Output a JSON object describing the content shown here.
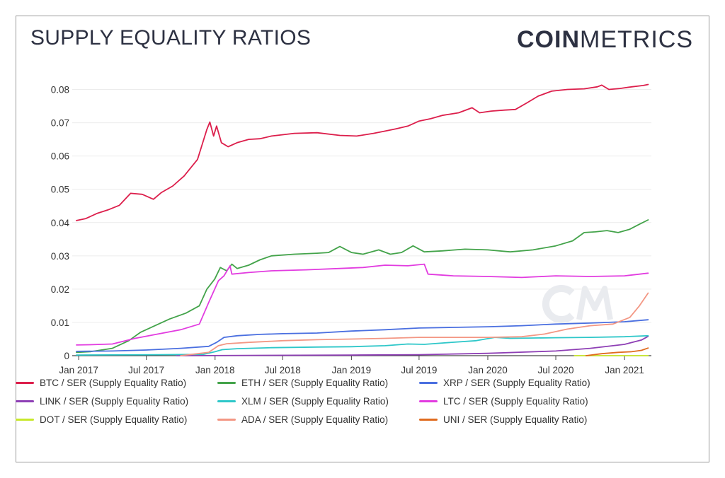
{
  "header": {
    "title": "SUPPLY EQUALITY RATIOS",
    "brand_bold": "COIN",
    "brand_light": "METRICS"
  },
  "chart_data": {
    "type": "line",
    "title": "SUPPLY EQUALITY RATIOS",
    "xlabel": "",
    "ylabel": "",
    "x_range": [
      "2016-12-26",
      "2021-03-10"
    ],
    "ylim": [
      0,
      0.085
    ],
    "yticks": [
      0,
      0.01,
      0.02,
      0.03,
      0.04,
      0.05,
      0.06,
      0.07,
      0.08
    ],
    "ytick_labels": [
      "0",
      "0.01",
      "0.02",
      "0.03",
      "0.04",
      "0.05",
      "0.06",
      "0.07",
      "0.08"
    ],
    "xticks": [
      "2017-01-01",
      "2017-07-01",
      "2018-01-01",
      "2018-07-01",
      "2019-01-01",
      "2019-07-01",
      "2020-01-01",
      "2020-07-01",
      "2021-01-01"
    ],
    "xtick_labels": [
      "Jan 2017",
      "Jul 2017",
      "Jan 2018",
      "Jul 2018",
      "Jan 2019",
      "Jul 2019",
      "Jan 2020",
      "Jul 2020",
      "Jan 2021"
    ],
    "grid": true,
    "legend_position": "bottom",
    "series": [
      {
        "name": "BTC / SER (Supply Equality Ratio)",
        "color": "#dc1e4b",
        "points": [
          [
            "2016-12-26",
            0.0406
          ],
          [
            "2017-01-20",
            0.0412
          ],
          [
            "2017-02-20",
            0.0428
          ],
          [
            "2017-03-20",
            0.0438
          ],
          [
            "2017-04-20",
            0.0452
          ],
          [
            "2017-05-20",
            0.0488
          ],
          [
            "2017-06-20",
            0.0485
          ],
          [
            "2017-07-20",
            0.047
          ],
          [
            "2017-08-10",
            0.049
          ],
          [
            "2017-09-10",
            0.051
          ],
          [
            "2017-10-10",
            0.054
          ],
          [
            "2017-11-15",
            0.059
          ],
          [
            "2017-12-10",
            0.068
          ],
          [
            "2017-12-18",
            0.0702
          ],
          [
            "2017-12-28",
            0.066
          ],
          [
            "2018-01-05",
            0.069
          ],
          [
            "2018-01-18",
            0.064
          ],
          [
            "2018-02-05",
            0.0628
          ],
          [
            "2018-03-01",
            0.064
          ],
          [
            "2018-04-01",
            0.065
          ],
          [
            "2018-05-01",
            0.0652
          ],
          [
            "2018-06-01",
            0.066
          ],
          [
            "2018-08-01",
            0.0668
          ],
          [
            "2018-10-01",
            0.067
          ],
          [
            "2018-12-01",
            0.0662
          ],
          [
            "2019-01-15",
            0.066
          ],
          [
            "2019-03-01",
            0.0668
          ],
          [
            "2019-04-01",
            0.0675
          ],
          [
            "2019-05-01",
            0.0682
          ],
          [
            "2019-06-01",
            0.069
          ],
          [
            "2019-07-01",
            0.0705
          ],
          [
            "2019-08-01",
            0.0712
          ],
          [
            "2019-09-01",
            0.0722
          ],
          [
            "2019-10-15",
            0.073
          ],
          [
            "2019-11-20",
            0.0745
          ],
          [
            "2019-12-10",
            0.073
          ],
          [
            "2020-01-10",
            0.0735
          ],
          [
            "2020-02-15",
            0.0738
          ],
          [
            "2020-03-15",
            0.074
          ],
          [
            "2020-04-15",
            0.076
          ],
          [
            "2020-05-15",
            0.078
          ],
          [
            "2020-06-20",
            0.0795
          ],
          [
            "2020-08-01",
            0.08
          ],
          [
            "2020-09-15",
            0.0802
          ],
          [
            "2020-10-20",
            0.0808
          ],
          [
            "2020-11-01",
            0.0813
          ],
          [
            "2020-11-20",
            0.08
          ],
          [
            "2020-12-20",
            0.0803
          ],
          [
            "2021-01-20",
            0.0808
          ],
          [
            "2021-02-20",
            0.0812
          ],
          [
            "2021-03-05",
            0.0815
          ]
        ]
      },
      {
        "name": "ETH / SER (Supply Equality Ratio)",
        "color": "#43a34a",
        "points": [
          [
            "2016-12-26",
            0.001
          ],
          [
            "2017-02-01",
            0.0012
          ],
          [
            "2017-04-01",
            0.0022
          ],
          [
            "2017-05-15",
            0.0045
          ],
          [
            "2017-06-15",
            0.007
          ],
          [
            "2017-07-20",
            0.0088
          ],
          [
            "2017-09-01",
            0.011
          ],
          [
            "2017-10-15",
            0.0128
          ],
          [
            "2017-11-20",
            0.015
          ],
          [
            "2017-12-10",
            0.02
          ],
          [
            "2017-12-31",
            0.023
          ],
          [
            "2018-01-15",
            0.0265
          ],
          [
            "2018-02-01",
            0.0255
          ],
          [
            "2018-02-15",
            0.0275
          ],
          [
            "2018-03-01",
            0.0262
          ],
          [
            "2018-04-01",
            0.0272
          ],
          [
            "2018-05-01",
            0.0288
          ],
          [
            "2018-06-01",
            0.03
          ],
          [
            "2018-08-01",
            0.0305
          ],
          [
            "2018-10-01",
            0.0308
          ],
          [
            "2018-11-01",
            0.031
          ],
          [
            "2018-12-01",
            0.0328
          ],
          [
            "2019-01-01",
            0.031
          ],
          [
            "2019-02-01",
            0.0305
          ],
          [
            "2019-03-15",
            0.0318
          ],
          [
            "2019-04-15",
            0.0305
          ],
          [
            "2019-05-15",
            0.031
          ],
          [
            "2019-06-15",
            0.033
          ],
          [
            "2019-07-15",
            0.0312
          ],
          [
            "2019-09-01",
            0.0315
          ],
          [
            "2019-11-01",
            0.032
          ],
          [
            "2020-01-01",
            0.0318
          ],
          [
            "2020-03-01",
            0.0312
          ],
          [
            "2020-05-01",
            0.0318
          ],
          [
            "2020-07-01",
            0.033
          ],
          [
            "2020-08-15",
            0.0345
          ],
          [
            "2020-09-15",
            0.037
          ],
          [
            "2020-10-15",
            0.0372
          ],
          [
            "2020-11-15",
            0.0376
          ],
          [
            "2020-12-15",
            0.037
          ],
          [
            "2021-01-15",
            0.038
          ],
          [
            "2021-02-10",
            0.0395
          ],
          [
            "2021-03-05",
            0.0408
          ]
        ]
      },
      {
        "name": "XRP / SER (Supply Equality Ratio)",
        "color": "#4a6fe0",
        "points": [
          [
            "2016-12-26",
            0.0013
          ],
          [
            "2017-04-01",
            0.0014
          ],
          [
            "2017-07-01",
            0.0017
          ],
          [
            "2017-10-01",
            0.0022
          ],
          [
            "2017-12-15",
            0.0028
          ],
          [
            "2018-01-05",
            0.004
          ],
          [
            "2018-01-25",
            0.0055
          ],
          [
            "2018-03-01",
            0.006
          ],
          [
            "2018-05-01",
            0.0064
          ],
          [
            "2018-07-01",
            0.0066
          ],
          [
            "2018-10-01",
            0.0068
          ],
          [
            "2019-01-01",
            0.0074
          ],
          [
            "2019-04-01",
            0.0078
          ],
          [
            "2019-07-01",
            0.0083
          ],
          [
            "2019-10-01",
            0.0085
          ],
          [
            "2020-01-01",
            0.0087
          ],
          [
            "2020-04-01",
            0.009
          ],
          [
            "2020-07-01",
            0.0095
          ],
          [
            "2020-10-01",
            0.0098
          ],
          [
            "2021-01-01",
            0.0102
          ],
          [
            "2021-03-05",
            0.0108
          ]
        ]
      },
      {
        "name": "LINK / SER (Supply Equality Ratio)",
        "color": "#8e3fb5",
        "points": [
          [
            "2017-09-20",
            0.0
          ],
          [
            "2018-06-01",
            0.0001
          ],
          [
            "2019-01-01",
            0.0002
          ],
          [
            "2019-07-01",
            0.0003
          ],
          [
            "2020-01-01",
            0.0007
          ],
          [
            "2020-07-01",
            0.0014
          ],
          [
            "2020-10-01",
            0.0022
          ],
          [
            "2021-01-01",
            0.0034
          ],
          [
            "2021-02-15",
            0.0047
          ],
          [
            "2021-03-05",
            0.0058
          ]
        ]
      },
      {
        "name": "XLM / SER (Supply Equality Ratio)",
        "color": "#2ec7c9",
        "points": [
          [
            "2016-12-26",
            0.0002
          ],
          [
            "2017-08-01",
            0.0003
          ],
          [
            "2017-12-01",
            0.0004
          ],
          [
            "2018-01-01",
            0.0012
          ],
          [
            "2018-01-20",
            0.0018
          ],
          [
            "2018-03-01",
            0.0021
          ],
          [
            "2018-06-01",
            0.0024
          ],
          [
            "2018-10-01",
            0.0026
          ],
          [
            "2019-01-01",
            0.0027
          ],
          [
            "2019-04-01",
            0.003
          ],
          [
            "2019-06-01",
            0.0035
          ],
          [
            "2019-07-15",
            0.0034
          ],
          [
            "2019-09-01",
            0.0038
          ],
          [
            "2019-12-01",
            0.0045
          ],
          [
            "2020-01-20",
            0.0055
          ],
          [
            "2020-03-01",
            0.0052
          ],
          [
            "2020-07-01",
            0.0054
          ],
          [
            "2020-10-01",
            0.0055
          ],
          [
            "2021-01-01",
            0.0057
          ],
          [
            "2021-03-05",
            0.006
          ]
        ]
      },
      {
        "name": "LTC / SER (Supply Equality Ratio)",
        "color": "#e23ce0",
        "points": [
          [
            "2016-12-26",
            0.0032
          ],
          [
            "2017-02-01",
            0.0033
          ],
          [
            "2017-04-01",
            0.0035
          ],
          [
            "2017-06-01",
            0.0052
          ],
          [
            "2017-08-01",
            0.0065
          ],
          [
            "2017-10-01",
            0.0078
          ],
          [
            "2017-11-20",
            0.0095
          ],
          [
            "2017-12-15",
            0.016
          ],
          [
            "2018-01-10",
            0.0225
          ],
          [
            "2018-01-25",
            0.024
          ],
          [
            "2018-02-10",
            0.027
          ],
          [
            "2018-02-15",
            0.0245
          ],
          [
            "2018-04-01",
            0.025
          ],
          [
            "2018-06-01",
            0.0255
          ],
          [
            "2018-09-01",
            0.0258
          ],
          [
            "2018-12-01",
            0.0262
          ],
          [
            "2019-02-01",
            0.0265
          ],
          [
            "2019-04-01",
            0.0272
          ],
          [
            "2019-06-01",
            0.027
          ],
          [
            "2019-07-15",
            0.0275
          ],
          [
            "2019-07-25",
            0.0245
          ],
          [
            "2019-10-01",
            0.024
          ],
          [
            "2020-01-01",
            0.0238
          ],
          [
            "2020-04-01",
            0.0235
          ],
          [
            "2020-07-01",
            0.024
          ],
          [
            "2020-10-01",
            0.0238
          ],
          [
            "2021-01-01",
            0.024
          ],
          [
            "2021-03-05",
            0.0248
          ]
        ]
      },
      {
        "name": "DOT / SER (Supply Equality Ratio)",
        "color": "#c8e82a",
        "points": [
          [
            "2020-08-20",
            0.0
          ],
          [
            "2021-03-05",
            0.0
          ]
        ]
      },
      {
        "name": "ADA / SER (Supply Equality Ratio)",
        "color": "#f39784",
        "points": [
          [
            "2017-10-01",
            0.0
          ],
          [
            "2017-12-15",
            0.001
          ],
          [
            "2018-01-10",
            0.003
          ],
          [
            "2018-02-01",
            0.0036
          ],
          [
            "2018-04-01",
            0.004
          ],
          [
            "2018-07-01",
            0.0045
          ],
          [
            "2018-10-01",
            0.0048
          ],
          [
            "2019-01-01",
            0.005
          ],
          [
            "2019-04-01",
            0.0052
          ],
          [
            "2019-07-01",
            0.0055
          ],
          [
            "2019-10-01",
            0.0055
          ],
          [
            "2020-01-01",
            0.0055
          ],
          [
            "2020-04-01",
            0.0057
          ],
          [
            "2020-06-01",
            0.0065
          ],
          [
            "2020-08-01",
            0.008
          ],
          [
            "2020-10-01",
            0.009
          ],
          [
            "2020-12-01",
            0.0095
          ],
          [
            "2021-01-15",
            0.0115
          ],
          [
            "2021-02-10",
            0.015
          ],
          [
            "2021-03-05",
            0.0188
          ]
        ]
      },
      {
        "name": "UNI / SER (Supply Equality Ratio)",
        "color": "#e06b1f",
        "points": [
          [
            "2020-09-20",
            0.0
          ],
          [
            "2020-11-01",
            0.0006
          ],
          [
            "2020-12-15",
            0.001
          ],
          [
            "2021-01-20",
            0.0012
          ],
          [
            "2021-02-15",
            0.0016
          ],
          [
            "2021-03-05",
            0.0023
          ]
        ]
      }
    ]
  }
}
